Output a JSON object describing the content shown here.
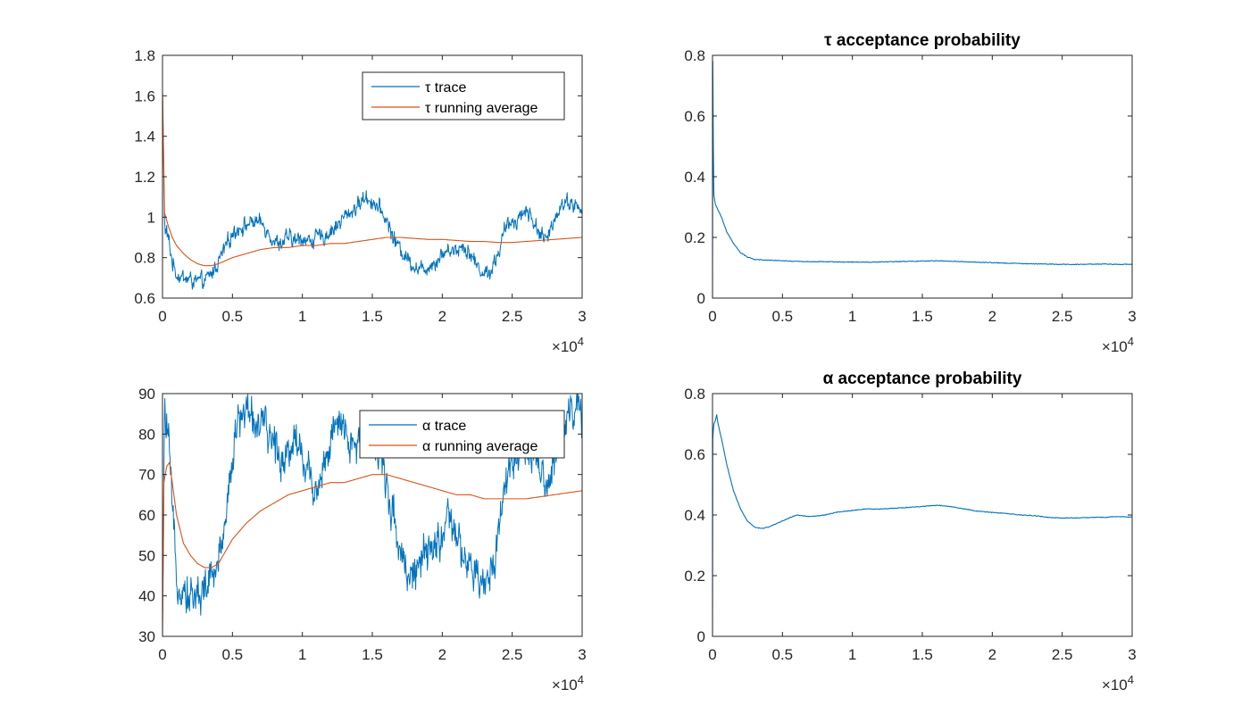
{
  "colors": {
    "trace": "#0072BD",
    "running_average": "#D95319",
    "axis": "#262626",
    "background": "#FFFFFF"
  },
  "chart_data": [
    {
      "id": "tau-trace",
      "type": "line",
      "title": "",
      "xlabel": "",
      "ylabel": "",
      "xlim": [
        0,
        30000
      ],
      "ylim": [
        0.6,
        1.8
      ],
      "x_ticks": [
        "0",
        "0.5",
        "1",
        "1.5",
        "2",
        "2.5",
        "3"
      ],
      "y_ticks": [
        "0.6",
        "0.8",
        "1",
        "1.2",
        "1.4",
        "1.6",
        "1.8"
      ],
      "x_multiplier": "×10^4",
      "grid": false,
      "legend_position": "top-right",
      "series": [
        {
          "name": "τ trace",
          "color_key": "trace",
          "noisy": true,
          "x": [
            0,
            150,
            400,
            700,
            1000,
            1500,
            2000,
            2500,
            3000,
            3500,
            4000,
            4500,
            5000,
            5500,
            6000,
            6500,
            7000,
            7500,
            8000,
            8500,
            9000,
            9500,
            10000,
            10500,
            11000,
            11500,
            12000,
            12500,
            13000,
            13500,
            14000,
            14500,
            15000,
            15500,
            16000,
            16500,
            17000,
            17500,
            18000,
            18500,
            19000,
            19500,
            20000,
            20500,
            21000,
            21500,
            22000,
            22500,
            23000,
            23500,
            24000,
            24500,
            25000,
            25500,
            26000,
            26500,
            27000,
            27500,
            28000,
            28500,
            29000,
            29500,
            30000
          ],
          "y": [
            1.62,
            0.95,
            0.9,
            0.78,
            0.72,
            0.7,
            0.69,
            0.68,
            0.68,
            0.72,
            0.78,
            0.85,
            0.92,
            0.95,
            0.96,
            0.98,
            0.97,
            0.94,
            0.88,
            0.87,
            0.9,
            0.88,
            0.9,
            0.88,
            0.9,
            0.9,
            0.93,
            0.96,
            1.0,
            1.03,
            1.06,
            1.1,
            1.08,
            1.04,
            0.99,
            0.9,
            0.84,
            0.8,
            0.76,
            0.74,
            0.76,
            0.78,
            0.82,
            0.84,
            0.84,
            0.86,
            0.82,
            0.76,
            0.72,
            0.74,
            0.82,
            0.94,
            0.98,
            1.0,
            1.04,
            0.98,
            0.92,
            0.88,
            1.0,
            1.06,
            1.08,
            1.06,
            1.02
          ]
        },
        {
          "name": "τ running average",
          "color_key": "running_average",
          "noisy": false,
          "x": [
            0,
            150,
            400,
            700,
            1000,
            1500,
            2000,
            2500,
            3000,
            3500,
            4000,
            5000,
            6000,
            7000,
            8000,
            9000,
            10000,
            11000,
            12000,
            13000,
            14000,
            15000,
            16000,
            17000,
            18000,
            19000,
            20000,
            21000,
            22000,
            23000,
            24000,
            25000,
            26000,
            27000,
            28000,
            29000,
            30000
          ],
          "y": [
            1.62,
            1.02,
            0.96,
            0.9,
            0.86,
            0.82,
            0.79,
            0.77,
            0.76,
            0.76,
            0.77,
            0.8,
            0.82,
            0.84,
            0.85,
            0.85,
            0.86,
            0.86,
            0.87,
            0.87,
            0.88,
            0.89,
            0.9,
            0.9,
            0.895,
            0.89,
            0.89,
            0.885,
            0.88,
            0.88,
            0.875,
            0.875,
            0.88,
            0.885,
            0.89,
            0.895,
            0.9
          ]
        }
      ]
    },
    {
      "id": "tau-acceptance",
      "type": "line",
      "title": "τ acceptance probability",
      "xlabel": "",
      "ylabel": "",
      "xlim": [
        0,
        30000
      ],
      "ylim": [
        0,
        0.8
      ],
      "x_ticks": [
        "0",
        "0.5",
        "1",
        "1.5",
        "2",
        "2.5",
        "3"
      ],
      "y_ticks": [
        "0",
        "0.2",
        "0.4",
        "0.6",
        "0.8"
      ],
      "x_multiplier": "×10^4",
      "grid": false,
      "series": [
        {
          "color_key": "trace",
          "noisy": false,
          "x": [
            0,
            20,
            60,
            100,
            200,
            300,
            500,
            700,
            1000,
            1500,
            2000,
            2500,
            3000,
            4000,
            5000,
            6000,
            7000,
            8000,
            9000,
            10000,
            11000,
            12000,
            13000,
            14000,
            15000,
            16000,
            17000,
            18000,
            19000,
            20000,
            21000,
            22000,
            23000,
            24000,
            25000,
            26000,
            27000,
            28000,
            29000,
            30000
          ],
          "y": [
            0.0,
            0.78,
            0.5,
            0.34,
            0.31,
            0.3,
            0.28,
            0.26,
            0.22,
            0.18,
            0.15,
            0.135,
            0.127,
            0.125,
            0.123,
            0.121,
            0.12,
            0.12,
            0.119,
            0.119,
            0.118,
            0.119,
            0.12,
            0.121,
            0.122,
            0.123,
            0.122,
            0.12,
            0.118,
            0.117,
            0.115,
            0.114,
            0.113,
            0.112,
            0.111,
            0.111,
            0.112,
            0.112,
            0.111,
            0.111
          ]
        }
      ]
    },
    {
      "id": "alpha-trace",
      "type": "line",
      "title": "",
      "xlabel": "",
      "ylabel": "",
      "xlim": [
        0,
        30000
      ],
      "ylim": [
        30,
        90
      ],
      "x_ticks": [
        "0",
        "0.5",
        "1",
        "1.5",
        "2",
        "2.5",
        "3"
      ],
      "y_ticks": [
        "30",
        "40",
        "50",
        "60",
        "70",
        "80",
        "90"
      ],
      "x_multiplier": "×10^4",
      "grid": false,
      "legend_position": "top-right",
      "series": [
        {
          "name": "α trace",
          "color_key": "trace",
          "noisy": true,
          "x": [
            0,
            150,
            400,
            700,
            1000,
            1500,
            2000,
            2500,
            3000,
            3500,
            4000,
            4500,
            5000,
            5500,
            6000,
            6500,
            7000,
            7500,
            8000,
            8500,
            9000,
            9500,
            10000,
            10500,
            11000,
            11500,
            12000,
            12500,
            13000,
            13500,
            14000,
            14500,
            15000,
            15500,
            16000,
            16500,
            17000,
            17500,
            18000,
            18500,
            19000,
            19500,
            20000,
            20500,
            21000,
            21500,
            22000,
            22500,
            23000,
            23500,
            24000,
            24500,
            25000,
            25500,
            26000,
            26500,
            27000,
            27500,
            28000,
            28500,
            29000,
            29500,
            30000
          ],
          "y": [
            30,
            85,
            80,
            60,
            45,
            42,
            40,
            40,
            42,
            44,
            48,
            60,
            75,
            84,
            86,
            84,
            82,
            80,
            78,
            74,
            76,
            80,
            74,
            70,
            66,
            72,
            78,
            82,
            80,
            76,
            78,
            84,
            80,
            74,
            68,
            60,
            52,
            46,
            46,
            48,
            50,
            52,
            56,
            58,
            54,
            50,
            46,
            44,
            42,
            46,
            56,
            68,
            74,
            76,
            76,
            74,
            70,
            66,
            74,
            82,
            86,
            86,
            84
          ]
        },
        {
          "name": "α running average",
          "color_key": "running_average",
          "noisy": false,
          "x": [
            0,
            100,
            300,
            500,
            700,
            1000,
            1500,
            2000,
            2500,
            3000,
            3500,
            4000,
            4500,
            5000,
            6000,
            7000,
            8000,
            9000,
            10000,
            11000,
            12000,
            13000,
            14000,
            15000,
            16000,
            17000,
            18000,
            19000,
            20000,
            21000,
            22000,
            23000,
            24000,
            25000,
            26000,
            27000,
            28000,
            29000,
            30000
          ],
          "y": [
            30,
            68,
            72,
            73,
            68,
            60,
            53,
            50,
            48,
            47,
            47,
            48,
            51,
            54,
            58,
            61,
            63,
            65,
            66,
            67,
            68,
            68,
            69,
            70,
            70,
            69,
            68,
            67,
            66,
            65,
            65,
            64,
            64,
            64,
            64,
            64.5,
            65,
            65.5,
            66
          ]
        }
      ]
    },
    {
      "id": "alpha-acceptance",
      "type": "line",
      "title": "α acceptance probability",
      "xlabel": "",
      "ylabel": "",
      "xlim": [
        0,
        30000
      ],
      "ylim": [
        0,
        0.8
      ],
      "x_ticks": [
        "0",
        "0.5",
        "1",
        "1.5",
        "2",
        "2.5",
        "3"
      ],
      "y_ticks": [
        "0",
        "0.2",
        "0.4",
        "0.6",
        "0.8"
      ],
      "x_multiplier": "×10^4",
      "grid": false,
      "series": [
        {
          "color_key": "trace",
          "noisy": false,
          "x": [
            0,
            20,
            60,
            100,
            200,
            300,
            400,
            500,
            700,
            1000,
            1500,
            2000,
            2500,
            3000,
            3500,
            4000,
            5000,
            6000,
            7000,
            8000,
            9000,
            10000,
            11000,
            12000,
            13000,
            14000,
            15000,
            16000,
            17000,
            18000,
            19000,
            20000,
            21000,
            22000,
            23000,
            24000,
            25000,
            26000,
            27000,
            28000,
            29000,
            30000
          ],
          "y": [
            0.0,
            0.65,
            0.68,
            0.7,
            0.71,
            0.73,
            0.7,
            0.68,
            0.64,
            0.57,
            0.48,
            0.42,
            0.38,
            0.36,
            0.355,
            0.36,
            0.38,
            0.4,
            0.395,
            0.4,
            0.41,
            0.415,
            0.42,
            0.42,
            0.422,
            0.425,
            0.428,
            0.432,
            0.428,
            0.42,
            0.412,
            0.408,
            0.405,
            0.4,
            0.398,
            0.392,
            0.39,
            0.39,
            0.392,
            0.392,
            0.395,
            0.393
          ]
        }
      ]
    }
  ]
}
